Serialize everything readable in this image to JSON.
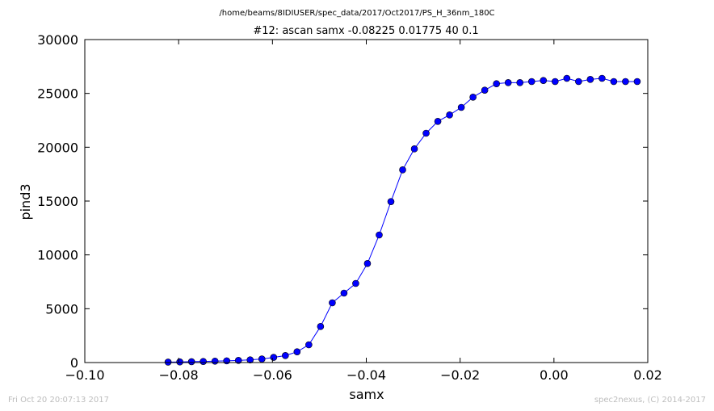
{
  "chart_data": {
    "type": "line",
    "supertitle": "/home/beams/8IDIUSER/spec_data/2017/Oct2017/PS_H_36nm_180C",
    "title": "#12: ascan  samx -0.08225 0.01775  40 0.1",
    "xlabel": "samx",
    "ylabel": "pind3",
    "xlim": [
      -0.1,
      0.02
    ],
    "ylim": [
      0,
      30000
    ],
    "x_ticks": [
      -0.1,
      -0.08,
      -0.06,
      -0.04,
      -0.02,
      0.0,
      0.02
    ],
    "x_tick_labels": [
      "−0.10",
      "−0.08",
      "−0.06",
      "−0.04",
      "−0.02",
      "0.00",
      "0.02"
    ],
    "y_ticks": [
      0,
      5000,
      10000,
      15000,
      20000,
      25000,
      30000
    ],
    "y_tick_labels": [
      "0",
      "5000",
      "10000",
      "15000",
      "20000",
      "25000",
      "30000"
    ],
    "grid": false,
    "series": [
      {
        "color": "#0000ff",
        "marker": "circle",
        "x": [
          -0.08225,
          -0.07975,
          -0.07725,
          -0.07475,
          -0.07225,
          -0.06975,
          -0.06725,
          -0.06475,
          -0.06225,
          -0.05975,
          -0.05725,
          -0.05475,
          -0.05225,
          -0.04975,
          -0.04725,
          -0.04475,
          -0.04225,
          -0.03975,
          -0.03725,
          -0.03475,
          -0.03225,
          -0.02975,
          -0.02725,
          -0.02475,
          -0.02225,
          -0.01975,
          -0.01725,
          -0.01475,
          -0.01225,
          -0.00975,
          -0.00725,
          -0.00475,
          -0.00225,
          0.00025,
          0.00275,
          0.00525,
          0.00775,
          0.01025,
          0.01275,
          0.01525,
          0.01775
        ],
        "y": [
          40,
          60,
          80,
          100,
          130,
          160,
          200,
          250,
          330,
          480,
          650,
          1000,
          1650,
          3350,
          5550,
          6450,
          7350,
          9200,
          11850,
          14950,
          17900,
          19850,
          21300,
          22400,
          23000,
          23700,
          24650,
          25300,
          25900,
          26000,
          26000,
          26100,
          26200,
          26100,
          26400,
          26100,
          26300,
          26400,
          26100,
          26100,
          26100
        ]
      }
    ]
  },
  "footer": {
    "timestamp": "Fri Oct 20 20:07:13 2017",
    "credit": "spec2nexus, (C) 2014-2017"
  }
}
